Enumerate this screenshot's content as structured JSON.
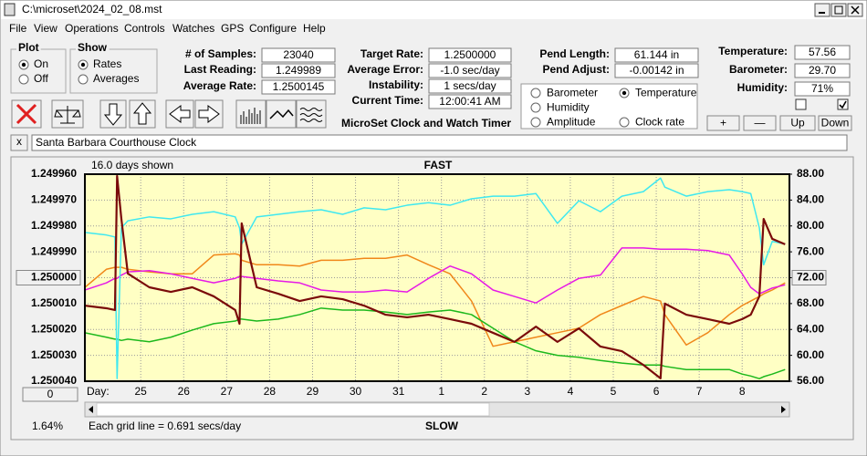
{
  "window": {
    "title": "C:\\microset\\2024_02_08.mst",
    "menu": [
      "File",
      "View",
      "Operations",
      "Controls",
      "Watches",
      "GPS",
      "Configure",
      "Help"
    ]
  },
  "plot_group": {
    "title": "Plot",
    "options": [
      "On",
      "Off"
    ],
    "selected": 0
  },
  "show_group": {
    "title": "Show",
    "options": [
      "Rates",
      "Averages"
    ],
    "selected": 0
  },
  "readouts": [
    {
      "label": "# of Samples:",
      "value": "23040"
    },
    {
      "label": "Last Reading:",
      "value": "1.249989"
    },
    {
      "label": "Average Rate:",
      "value": "1.2500145"
    },
    {
      "label": "Target Rate:",
      "value": "1.2500000"
    },
    {
      "label": "Average Error:",
      "value": "-1.0 sec/day"
    },
    {
      "label": "Instability:",
      "value": "1 secs/day"
    },
    {
      "label": "Current Time:",
      "value": "12:00:41 AM"
    },
    {
      "label": "Pend Length:",
      "value": "61.144 in"
    },
    {
      "label": "Pend Adjust:",
      "value": "-0.00142 in"
    },
    {
      "label": "Temperature:",
      "value": "57.56"
    },
    {
      "label": "Barometer:",
      "value": "29.70"
    },
    {
      "label": "Humidity:",
      "value": "71%"
    }
  ],
  "app_title": "MicroSet Clock and Watch Timer",
  "checkboxes": [
    false,
    true
  ],
  "buttons": [
    "+",
    "—",
    "Up",
    "Down"
  ],
  "close_button": "x",
  "clock_name": "Santa Barbara Courthouse Clock",
  "chart_data": {
    "type": "line",
    "span_label": "16.0 days shown",
    "top_label": "FAST",
    "bottom_label": "SLOW",
    "grid_note": "Each grid line = 0.691 secs/day",
    "status": "1.64%",
    "offset_button": "0",
    "x_label": "Day:",
    "grid": true,
    "legend_selected": 1,
    "x": [
      0,
      0.5,
      0.7,
      0.75,
      0.85,
      1,
      1.5,
      2,
      2.5,
      3,
      3.5,
      3.6,
      3.65,
      4,
      4.5,
      5,
      5.5,
      6,
      6.5,
      7,
      7.5,
      8,
      8.5,
      9,
      9.5,
      10,
      10.5,
      11,
      11.5,
      12,
      12.5,
      13,
      13.4,
      13.5,
      14,
      14.5,
      15,
      15.3,
      15.5,
      15.7,
      15.8,
      16,
      16.3
    ],
    "xlim": [
      0,
      16.4
    ],
    "xticks": [
      {
        "value": 1.3,
        "label": "25"
      },
      {
        "value": 2.3,
        "label": "26"
      },
      {
        "value": 3.3,
        "label": "27"
      },
      {
        "value": 4.3,
        "label": "28"
      },
      {
        "value": 5.3,
        "label": "29"
      },
      {
        "value": 6.3,
        "label": "30"
      },
      {
        "value": 7.3,
        "label": "31"
      },
      {
        "value": 8.3,
        "label": "1"
      },
      {
        "value": 9.3,
        "label": "2"
      },
      {
        "value": 10.3,
        "label": "3"
      },
      {
        "value": 11.3,
        "label": "4"
      },
      {
        "value": 12.3,
        "label": "5"
      },
      {
        "value": 13.3,
        "label": "6"
      },
      {
        "value": 14.3,
        "label": "7"
      },
      {
        "value": 15.3,
        "label": "8"
      }
    ],
    "ylim": [
      1.25004,
      1.24996
    ],
    "yticks": [
      {
        "value": 1.24996,
        "label": "1.249960"
      },
      {
        "value": 1.24997,
        "label": "1.249970"
      },
      {
        "value": 1.24998,
        "label": "1.249980"
      },
      {
        "value": 1.24999,
        "label": "1.249990"
      },
      {
        "value": 1.25,
        "label": "1.250000"
      },
      {
        "value": 1.25001,
        "label": "1.250010"
      },
      {
        "value": 1.25002,
        "label": "1.250020"
      },
      {
        "value": 1.25003,
        "label": "1.250030"
      },
      {
        "value": 1.25004,
        "label": "1.250040"
      }
    ],
    "y2lim": [
      56,
      88
    ],
    "y2ticks": [
      {
        "value": 56,
        "label": "56.00"
      },
      {
        "value": 60,
        "label": "60.00"
      },
      {
        "value": 64,
        "label": "64.00"
      },
      {
        "value": 68,
        "label": "68.00"
      },
      {
        "value": 72,
        "label": "72.00"
      },
      {
        "value": 76,
        "label": "76.00"
      },
      {
        "value": 80,
        "label": "80.00"
      },
      {
        "value": 84,
        "label": "84.00"
      },
      {
        "value": 88,
        "label": "88.00"
      }
    ],
    "series": [
      {
        "name": "Barometer",
        "color": "#f0871a",
        "axis": "y2",
        "values": [
          70.5,
          73.3,
          73.6,
          73.6,
          73.6,
          73.3,
          72.9,
          72.6,
          72.6,
          75.5,
          75.7,
          75.5,
          74.7,
          74.0,
          74.0,
          73.8,
          74.7,
          74.7,
          75.0,
          75.0,
          75.5,
          74.0,
          72.6,
          68.4,
          61.4,
          62.1,
          62.8,
          63.5,
          64.2,
          66.3,
          67.7,
          69.1,
          68.4,
          66.3,
          61.6,
          63.5,
          66.3,
          67.7,
          68.4,
          69.1,
          69.5,
          70.1,
          71.2
        ]
      },
      {
        "name": "Temperature",
        "color": "#1cb81c",
        "axis": "y2",
        "values": [
          63.5,
          62.8,
          62.5,
          62.5,
          62.3,
          62.5,
          62.1,
          62.8,
          63.9,
          64.9,
          65.3,
          65.6,
          65.6,
          65.3,
          65.6,
          66.3,
          67.3,
          67.0,
          67.0,
          66.7,
          66.3,
          66.7,
          67.0,
          66.3,
          64.2,
          62.1,
          60.7,
          60.0,
          59.7,
          59.2,
          58.8,
          58.5,
          58.5,
          58.3,
          57.8,
          57.8,
          57.8,
          57.1,
          56.8,
          56.4,
          56.7,
          57.1,
          57.8
        ]
      },
      {
        "name": "Humidity",
        "color": "#e619e6",
        "axis": "y2",
        "values": [
          70.1,
          71.2,
          71.9,
          71.9,
          72.4,
          72.9,
          73.1,
          72.6,
          71.9,
          71.2,
          71.9,
          72.2,
          72.2,
          71.9,
          71.5,
          71.2,
          70.1,
          69.8,
          69.8,
          70.1,
          69.8,
          71.9,
          73.8,
          72.6,
          70.1,
          69.1,
          68.1,
          70.1,
          71.9,
          72.4,
          76.6,
          76.6,
          76.4,
          76.4,
          76.4,
          76.2,
          75.5,
          72.6,
          70.5,
          69.5,
          69.8,
          70.4,
          70.9
        ]
      },
      {
        "name": "Amplitude",
        "color": "#3fe8f0",
        "axis": "y2",
        "values": [
          79.0,
          78.6,
          78.3,
          56.4,
          79.7,
          80.8,
          81.4,
          81.1,
          81.8,
          82.2,
          81.4,
          79.7,
          77.2,
          81.4,
          81.8,
          82.2,
          82.5,
          81.8,
          82.8,
          82.5,
          83.2,
          83.6,
          83.2,
          84.2,
          84.6,
          84.6,
          85.0,
          80.4,
          83.9,
          82.2,
          84.6,
          85.3,
          87.4,
          86.0,
          84.6,
          85.3,
          85.6,
          85.3,
          85.0,
          79.7,
          74.0,
          77.6,
          77.2
        ]
      },
      {
        "name": "Clock rate",
        "color": "#7a0a0a",
        "values": [
          1.2500108,
          1.2500118,
          1.2500125,
          1.2499607,
          1.2499773,
          1.2499984,
          1.2500037,
          1.2500055,
          1.2500037,
          1.2500072,
          1.2500125,
          1.2500178,
          1.249979,
          1.2500037,
          1.2500062,
          1.250009,
          1.2500072,
          1.2500083,
          1.2500108,
          1.2500143,
          1.2500153,
          1.2500143,
          1.250016,
          1.2500178,
          1.2500213,
          1.2500248,
          1.2500189,
          1.2500248,
          1.2500196,
          1.2500266,
          1.2500284,
          1.2500337,
          1.2500389,
          1.25001,
          1.2500143,
          1.250016,
          1.2500178,
          1.250016,
          1.2500143,
          1.2500072,
          1.2499773,
          1.249985,
          1.2499871
        ]
      }
    ]
  }
}
